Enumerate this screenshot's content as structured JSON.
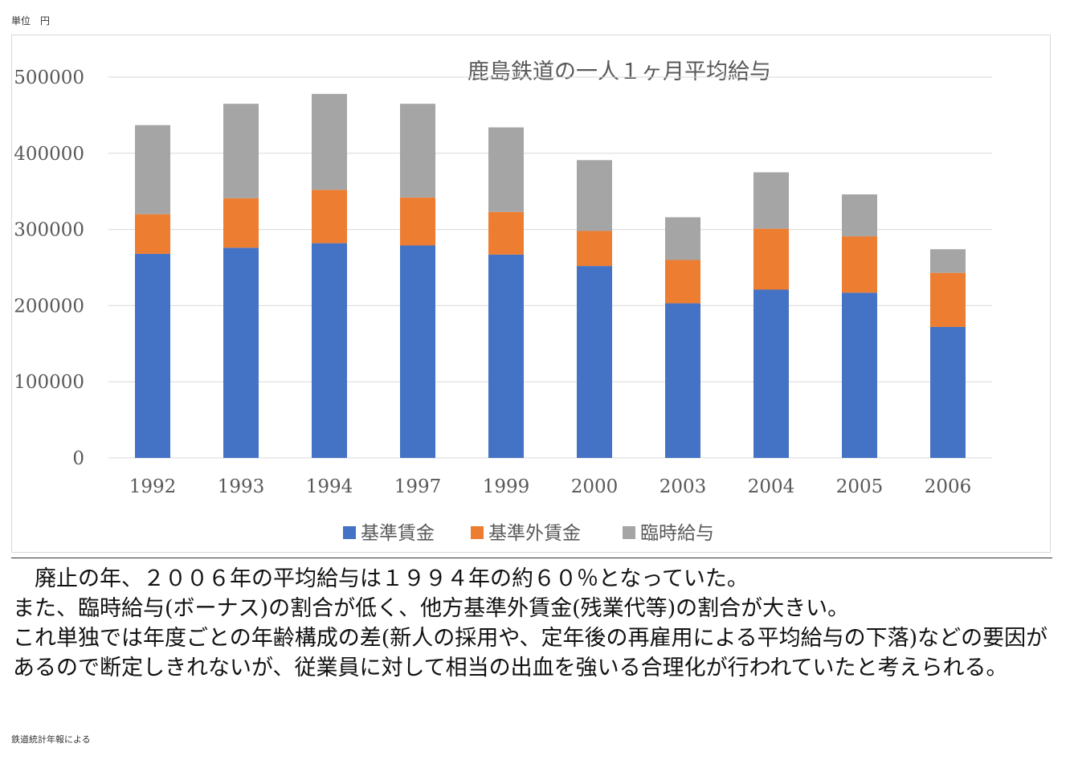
{
  "unit_label": "単位　円",
  "chart_data": {
    "type": "bar",
    "stacked": true,
    "title": "鹿島鉄道の一人１ヶ月平均給与",
    "categories": [
      "1992",
      "1993",
      "1994",
      "1997",
      "1999",
      "2000",
      "2003",
      "2004",
      "2005",
      "2006"
    ],
    "series": [
      {
        "name": "基準賃金",
        "color": "#4472C4",
        "values": [
          268000,
          276000,
          282000,
          279000,
          267000,
          252000,
          203000,
          221000,
          217000,
          172000
        ]
      },
      {
        "name": "基準外賃金",
        "color": "#ED7D31",
        "values": [
          52000,
          65000,
          70000,
          63000,
          56000,
          46000,
          57000,
          80000,
          74000,
          71000
        ]
      },
      {
        "name": "臨時給与",
        "color": "#A5A5A5",
        "values": [
          117000,
          124000,
          126000,
          123000,
          111000,
          93000,
          56000,
          74000,
          55000,
          31000
        ]
      }
    ],
    "y_ticks": [
      "0",
      "100000",
      "200000",
      "300000",
      "400000",
      "500000"
    ],
    "ylim": [
      0,
      500000
    ],
    "grid": true,
    "legend_position": "bottom"
  },
  "paragraphs": [
    "廃止の年、２００６年の平均給与は１９９４年の約６０％となっていた。",
    "また、臨時給与(ボーナス)の割合が低く、他方基準外賃金(残業代等)の割合が大きい。",
    "これ単独では年度ごとの年齢構成の差(新人の採用や、定年後の再雇用による平均給与の下落)などの要因があるので断定しきれないが、従業員に対して相当の出血を強いる合理化が行われていたと考えられる。"
  ],
  "source_note": "鉄道統計年報による"
}
